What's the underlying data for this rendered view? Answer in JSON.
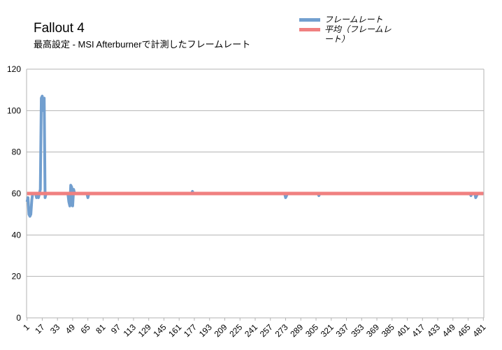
{
  "chart_data": {
    "type": "line",
    "title": "Fallout 4",
    "subtitle": "最高設定 - MSI Afterburnerで計測したフレームレート",
    "ylim": [
      0,
      120
    ],
    "yticks": [
      0,
      20,
      40,
      60,
      80,
      100,
      120
    ],
    "xticks": [
      1,
      17,
      33,
      49,
      65,
      81,
      97,
      113,
      129,
      145,
      161,
      177,
      193,
      209,
      225,
      241,
      257,
      273,
      289,
      305,
      321,
      337,
      353,
      369,
      385,
      401,
      417,
      433,
      449,
      465,
      481
    ],
    "x_count": 481,
    "grid": true,
    "legend_position": "top-right",
    "series": [
      {
        "name": "フレームレート",
        "color": "#729fcf",
        "baseline": 60,
        "points": [
          [
            1,
            56
          ],
          [
            2,
            58
          ],
          [
            3,
            50
          ],
          [
            4,
            49
          ],
          [
            5,
            50
          ],
          [
            6,
            57
          ],
          [
            7,
            60
          ],
          [
            10,
            60
          ],
          [
            11,
            58
          ],
          [
            12,
            59
          ],
          [
            13,
            58
          ],
          [
            14,
            60
          ],
          [
            15,
            62
          ],
          [
            16,
            106
          ],
          [
            17,
            107
          ],
          [
            18,
            100
          ],
          [
            19,
            106
          ],
          [
            20,
            58
          ],
          [
            21,
            60
          ],
          [
            44,
            60
          ],
          [
            45,
            56
          ],
          [
            46,
            54
          ],
          [
            47,
            64
          ],
          [
            48,
            63
          ],
          [
            49,
            54
          ],
          [
            50,
            62
          ],
          [
            51,
            60
          ],
          [
            64,
            60
          ],
          [
            65,
            58
          ],
          [
            66,
            60
          ],
          [
            174,
            60
          ],
          [
            175,
            61
          ],
          [
            176,
            60
          ],
          [
            272,
            60
          ],
          [
            273,
            58
          ],
          [
            274,
            59
          ],
          [
            275,
            60
          ],
          [
            307,
            60
          ],
          [
            308,
            59
          ],
          [
            309,
            60
          ],
          [
            467,
            60
          ],
          [
            468,
            59
          ],
          [
            469,
            60
          ],
          [
            472,
            60
          ],
          [
            473,
            58
          ],
          [
            474,
            59
          ],
          [
            475,
            60
          ]
        ]
      },
      {
        "name": "平均（フレームレート）",
        "color": "#f08080",
        "value": 60
      }
    ]
  },
  "legend": {
    "items": [
      {
        "label": "フレームレート",
        "color": "#729fcf"
      },
      {
        "label": "平均（フレームレート）",
        "color": "#f08080"
      }
    ]
  }
}
